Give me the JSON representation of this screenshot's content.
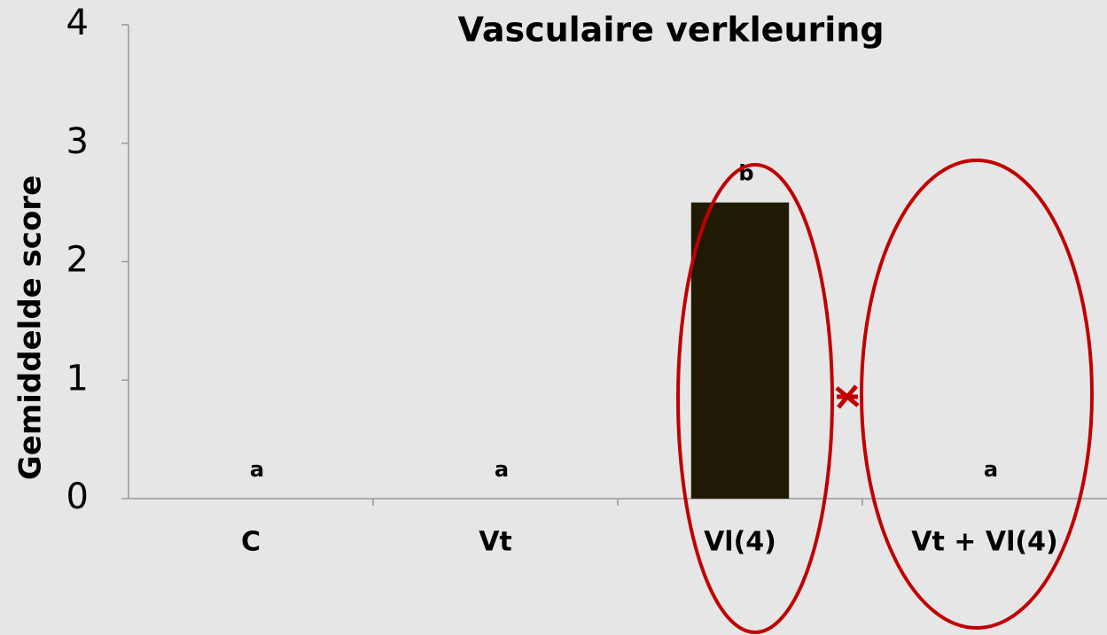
{
  "chart_data": {
    "type": "bar",
    "title": "Vasculaire verkleuring",
    "y_label": "Gemiddelde score",
    "categories": [
      "C",
      "Vt",
      "Vl(4)",
      "Vt + Vl(4)"
    ],
    "values": [
      0,
      0,
      2.5,
      0
    ],
    "annotations": [
      "a",
      "a",
      "b",
      "a"
    ],
    "color": "#201a05",
    "ylim": [
      0,
      4
    ],
    "yticks": [
      0,
      1,
      2,
      3,
      4
    ],
    "grid": false
  }
}
